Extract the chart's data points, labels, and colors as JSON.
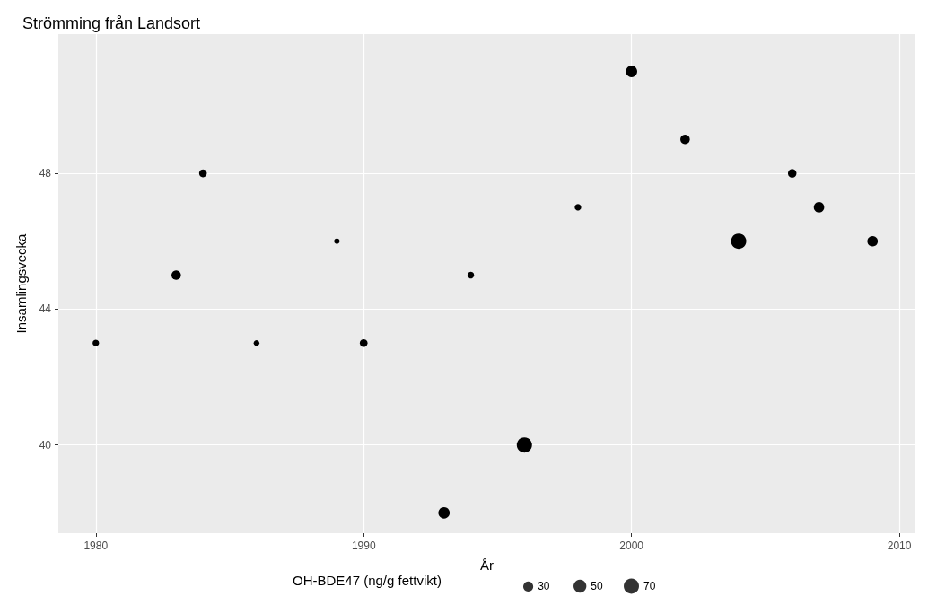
{
  "chart_data": {
    "type": "bubble",
    "title": "Strömming från Landsort",
    "xlabel": "År",
    "ylabel": "Insamlingsvecka",
    "legend_title": "OH-BDE47 (ng/g fettvikt)",
    "x": [
      1980,
      1983,
      1984,
      1986,
      1989,
      1990,
      1993,
      1994,
      1996,
      1998,
      2000,
      2002,
      2004,
      2006,
      2007,
      2009
    ],
    "values": [
      43,
      45,
      48,
      43,
      46,
      43,
      38,
      45,
      40,
      47,
      51,
      49,
      46,
      48,
      47,
      46
    ],
    "sizes": [
      13,
      27,
      18,
      10,
      9,
      18,
      39,
      13,
      70,
      13,
      39,
      27,
      70,
      22,
      33,
      33
    ],
    "size_legend": [
      30,
      50,
      70
    ],
    "color": "#000000",
    "xlim": [
      1978.6,
      2010.6
    ],
    "xticks": [
      1980,
      1990,
      2000,
      2010
    ],
    "ylim": [
      37.4,
      52.1
    ],
    "yticks": [
      40,
      44,
      48
    ],
    "grid": true,
    "marker": "circle"
  }
}
